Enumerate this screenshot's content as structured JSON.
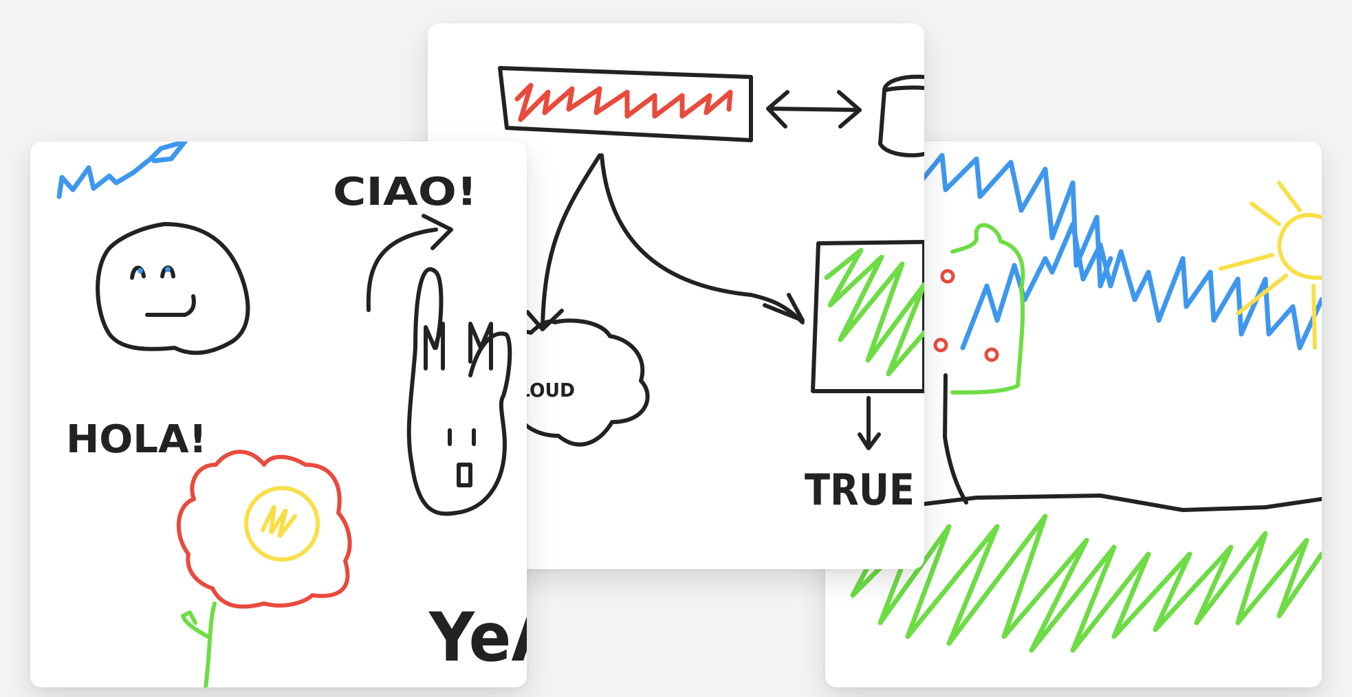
{
  "colors": {
    "background": "#f4f4f4",
    "card": "#ffffff",
    "ink": "#222222",
    "red": "#e84a3c",
    "green": "#6edc45",
    "blue": "#3e97ee",
    "yellow": "#f9df47",
    "eye_blue": "#3e97ee"
  },
  "cards": [
    {
      "id": "diagram",
      "texts": {
        "cloud_label": "LOUD",
        "result_label": "TRUE"
      }
    },
    {
      "id": "doodles",
      "texts": {
        "ciao": "CIAO!",
        "hola": "HOLA!",
        "yea": "YeA"
      }
    },
    {
      "id": "landscape",
      "texts": {}
    }
  ]
}
